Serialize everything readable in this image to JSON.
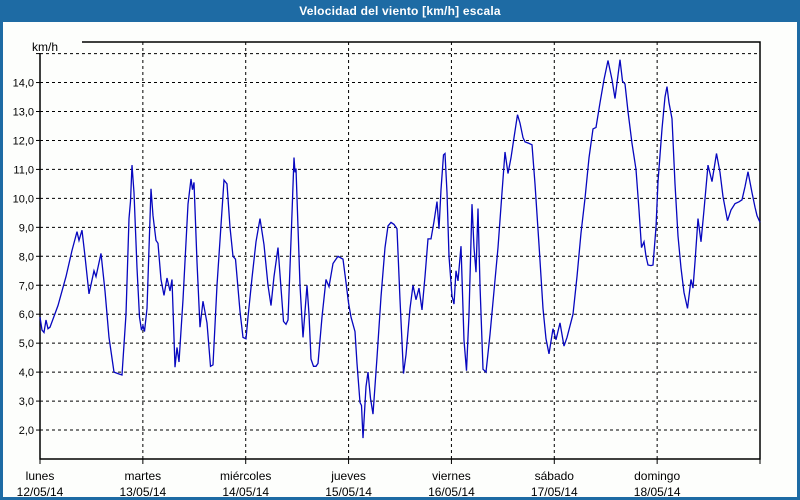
{
  "window": {
    "title": "Velocidad del viento [km/h] escala",
    "title_bar_color": "#1e6ba4",
    "frame_border_color": "#1e6ba4",
    "background_color": "#fdfefc"
  },
  "chart_data": {
    "type": "line",
    "title": "Velocidad del viento [km/h] escala",
    "ylabel": "km/h",
    "xlabel": "",
    "grid": "dashed",
    "legend": "none",
    "line_color": "#0707bf",
    "grid_color": "#000000",
    "text_color": "#000000",
    "ylim": [
      1.0,
      15.4
    ],
    "x_hours_total": 168,
    "y_axis": {
      "unit_label": "km/h",
      "tick_values": [
        14,
        13,
        12,
        11,
        10,
        9,
        8,
        7,
        6,
        5,
        4,
        3,
        2
      ],
      "tick_labels": [
        "14,0",
        "13,0",
        "12,0",
        "11,0",
        "10,0",
        "9,0",
        "8,0",
        "7,0",
        "6,0",
        "5,0",
        "4,0",
        "3,0",
        "2,0"
      ],
      "unlabeled_gridline_value": 15
    },
    "x_axis": {
      "day_start_hours": [
        0,
        24,
        48,
        72,
        96,
        120,
        144
      ],
      "days": [
        {
          "name": "lunes",
          "date": "12/05/14"
        },
        {
          "name": "martes",
          "date": "13/05/14"
        },
        {
          "name": "miércoles",
          "date": "14/05/14"
        },
        {
          "name": "jueves",
          "date": "15/05/14"
        },
        {
          "name": "viernes",
          "date": "16/05/14"
        },
        {
          "name": "sábado",
          "date": "17/05/14"
        },
        {
          "name": "domingo",
          "date": "18/05/14"
        }
      ]
    },
    "series": [
      {
        "name": "Velocidad del viento [km/h]",
        "points": [
          [
            0,
            5.9
          ],
          [
            0.47,
            5.45
          ],
          [
            0.93,
            5.37
          ],
          [
            1.4,
            5.8
          ],
          [
            1.87,
            5.5
          ],
          [
            2.33,
            5.55
          ],
          [
            4.2,
            6.3
          ],
          [
            6.07,
            7.3
          ],
          [
            7.47,
            8.2
          ],
          [
            8.63,
            8.85
          ],
          [
            9.1,
            8.55
          ],
          [
            9.8,
            8.9
          ],
          [
            10.5,
            8.0
          ],
          [
            11.43,
            6.7
          ],
          [
            12.6,
            7.5
          ],
          [
            13.07,
            7.3
          ],
          [
            14.23,
            8.1
          ],
          [
            15.17,
            6.8
          ],
          [
            16.1,
            5.2
          ],
          [
            17.27,
            4.0
          ],
          [
            18.2,
            3.95
          ],
          [
            19.13,
            3.9
          ],
          [
            20.07,
            6.0
          ],
          [
            20.77,
            9.3
          ],
          [
            21.12,
            9.9
          ],
          [
            21.47,
            11.15
          ],
          [
            21.93,
            10.2
          ],
          [
            22.63,
            7.6
          ],
          [
            23.22,
            5.9
          ],
          [
            23.68,
            5.45
          ],
          [
            24.03,
            5.6
          ],
          [
            24.38,
            5.4
          ],
          [
            24.97,
            6.2
          ],
          [
            25.9,
            10.33
          ],
          [
            26.37,
            9.4
          ],
          [
            27.07,
            8.55
          ],
          [
            27.53,
            8.45
          ],
          [
            28.23,
            7.2
          ],
          [
            28.93,
            6.65
          ],
          [
            29.63,
            7.25
          ],
          [
            30.33,
            6.8
          ],
          [
            30.8,
            7.2
          ],
          [
            31.5,
            4.17
          ],
          [
            31.97,
            4.85
          ],
          [
            32.43,
            4.35
          ],
          [
            33.37,
            6.5
          ],
          [
            34.53,
            9.8
          ],
          [
            35.23,
            10.67
          ],
          [
            35.58,
            10.3
          ],
          [
            35.93,
            10.55
          ],
          [
            36.63,
            7.8
          ],
          [
            37.33,
            5.55
          ],
          [
            38.03,
            6.45
          ],
          [
            38.97,
            5.7
          ],
          [
            39.78,
            4.2
          ],
          [
            40.37,
            4.25
          ],
          [
            41.3,
            7.0
          ],
          [
            42.93,
            10.63
          ],
          [
            43.63,
            10.5
          ],
          [
            44.33,
            9.0
          ],
          [
            45.03,
            8.0
          ],
          [
            45.62,
            7.9
          ],
          [
            46.67,
            6.1
          ],
          [
            47.37,
            5.2
          ],
          [
            48.07,
            5.15
          ],
          [
            48.53,
            5.9
          ],
          [
            49.47,
            7.25
          ],
          [
            50.4,
            8.5
          ],
          [
            51.33,
            9.3
          ],
          [
            52.27,
            8.4
          ],
          [
            53.2,
            7.0
          ],
          [
            53.9,
            6.3
          ],
          [
            54.6,
            7.3
          ],
          [
            55.53,
            8.3
          ],
          [
            56.23,
            6.9
          ],
          [
            56.82,
            5.75
          ],
          [
            57.4,
            5.65
          ],
          [
            57.87,
            5.8
          ],
          [
            58.68,
            9.0
          ],
          [
            59.27,
            11.41
          ],
          [
            59.5,
            10.9
          ],
          [
            59.73,
            11.03
          ],
          [
            60.2,
            9.0
          ],
          [
            60.67,
            7.0
          ],
          [
            61.37,
            5.2
          ],
          [
            62.3,
            7.0
          ],
          [
            62.77,
            6.0
          ],
          [
            63.23,
            4.45
          ],
          [
            63.82,
            4.2
          ],
          [
            64.4,
            4.2
          ],
          [
            64.87,
            4.3
          ],
          [
            65.8,
            5.9
          ],
          [
            66.73,
            7.2
          ],
          [
            67.43,
            6.95
          ],
          [
            68.37,
            7.75
          ],
          [
            69.53,
            8.0
          ],
          [
            70.7,
            7.9
          ],
          [
            71.4,
            7.1
          ],
          [
            71.98,
            6.4
          ],
          [
            72.57,
            5.9
          ],
          [
            73.5,
            5.4
          ],
          [
            73.97,
            4.3
          ],
          [
            74.67,
            2.95
          ],
          [
            75.02,
            2.85
          ],
          [
            75.37,
            1.72
          ],
          [
            76.07,
            3.5
          ],
          [
            76.53,
            4.0
          ],
          [
            77.12,
            3.1
          ],
          [
            77.7,
            2.55
          ],
          [
            78.63,
            4.5
          ],
          [
            79.57,
            6.6
          ],
          [
            80.5,
            8.3
          ],
          [
            81.2,
            9.05
          ],
          [
            81.9,
            9.17
          ],
          [
            82.6,
            9.1
          ],
          [
            83.3,
            8.95
          ],
          [
            84.0,
            6.5
          ],
          [
            84.82,
            3.95
          ],
          [
            85.4,
            4.6
          ],
          [
            86.33,
            6.2
          ],
          [
            87.03,
            7.0
          ],
          [
            87.73,
            6.5
          ],
          [
            88.43,
            6.9
          ],
          [
            89.13,
            6.15
          ],
          [
            89.83,
            7.3
          ],
          [
            90.53,
            8.6
          ],
          [
            91.23,
            8.6
          ],
          [
            91.93,
            9.2
          ],
          [
            92.63,
            9.89
          ],
          [
            93.1,
            8.95
          ],
          [
            93.57,
            10.3
          ],
          [
            94.15,
            11.5
          ],
          [
            94.5,
            11.55
          ],
          [
            94.97,
            10.2
          ],
          [
            95.43,
            8.0
          ],
          [
            96.13,
            6.63
          ],
          [
            96.6,
            6.35
          ],
          [
            97.07,
            7.5
          ],
          [
            97.53,
            7.15
          ],
          [
            98.23,
            8.35
          ],
          [
            98.93,
            5.1
          ],
          [
            99.52,
            4.05
          ],
          [
            100.1,
            6.0
          ],
          [
            100.8,
            9.8
          ],
          [
            101.27,
            8.3
          ],
          [
            101.73,
            7.45
          ],
          [
            102.2,
            9.65
          ],
          [
            102.67,
            7.0
          ],
          [
            103.37,
            4.1
          ],
          [
            104.07,
            4.0
          ],
          [
            105.0,
            5.3
          ],
          [
            105.93,
            6.8
          ],
          [
            106.87,
            8.3
          ],
          [
            107.8,
            10.2
          ],
          [
            108.5,
            11.6
          ],
          [
            109.2,
            10.86
          ],
          [
            109.9,
            11.4
          ],
          [
            110.6,
            12.1
          ],
          [
            111.42,
            12.89
          ],
          [
            112.0,
            12.6
          ],
          [
            112.7,
            12.1
          ],
          [
            113.17,
            11.95
          ],
          [
            114.1,
            11.9
          ],
          [
            114.8,
            11.85
          ],
          [
            115.5,
            10.5
          ],
          [
            116.43,
            8.4
          ],
          [
            117.37,
            6.2
          ],
          [
            118.07,
            5.15
          ],
          [
            118.77,
            4.63
          ],
          [
            119.7,
            5.5
          ],
          [
            120.4,
            5.12
          ],
          [
            121.33,
            5.7
          ],
          [
            122.27,
            4.9
          ],
          [
            122.97,
            5.2
          ],
          [
            123.67,
            5.6
          ],
          [
            124.37,
            6.0
          ],
          [
            125.3,
            7.3
          ],
          [
            126.23,
            8.8
          ],
          [
            127.17,
            10.0
          ],
          [
            128.1,
            11.4
          ],
          [
            129.03,
            12.4
          ],
          [
            129.73,
            12.45
          ],
          [
            130.67,
            13.3
          ],
          [
            131.6,
            14.1
          ],
          [
            132.53,
            14.76
          ],
          [
            133.47,
            14.1
          ],
          [
            134.17,
            13.45
          ],
          [
            135.33,
            14.79
          ],
          [
            135.92,
            14.05
          ],
          [
            136.5,
            13.95
          ],
          [
            137.2,
            13.0
          ],
          [
            138.13,
            11.9
          ],
          [
            139.07,
            11.0
          ],
          [
            139.77,
            9.6
          ],
          [
            140.35,
            8.3
          ],
          [
            140.93,
            8.5
          ],
          [
            141.4,
            8.0
          ],
          [
            141.87,
            7.7
          ],
          [
            142.57,
            7.68
          ],
          [
            143.03,
            7.7
          ],
          [
            143.73,
            9.0
          ],
          [
            144.2,
            10.58
          ],
          [
            145.13,
            12.4
          ],
          [
            145.83,
            13.5
          ],
          [
            146.3,
            13.86
          ],
          [
            146.77,
            13.3
          ],
          [
            147.47,
            12.75
          ],
          [
            148.17,
            10.5
          ],
          [
            148.87,
            8.7
          ],
          [
            149.57,
            7.6
          ],
          [
            150.27,
            6.75
          ],
          [
            151.08,
            6.2
          ],
          [
            151.9,
            7.2
          ],
          [
            152.37,
            6.9
          ],
          [
            152.83,
            7.8
          ],
          [
            153.53,
            9.3
          ],
          [
            154.23,
            8.5
          ],
          [
            154.93,
            9.6
          ],
          [
            155.87,
            11.15
          ],
          [
            156.8,
            10.58
          ],
          [
            157.85,
            11.55
          ],
          [
            158.67,
            10.9
          ],
          [
            159.37,
            10.06
          ],
          [
            160.42,
            9.23
          ],
          [
            161.23,
            9.6
          ],
          [
            162.17,
            9.82
          ],
          [
            163.1,
            9.88
          ],
          [
            163.8,
            9.95
          ],
          [
            164.5,
            10.4
          ],
          [
            165.2,
            10.92
          ],
          [
            166.13,
            10.2
          ],
          [
            166.83,
            9.7
          ],
          [
            167.3,
            9.4
          ],
          [
            168.0,
            9.17
          ]
        ]
      }
    ]
  }
}
